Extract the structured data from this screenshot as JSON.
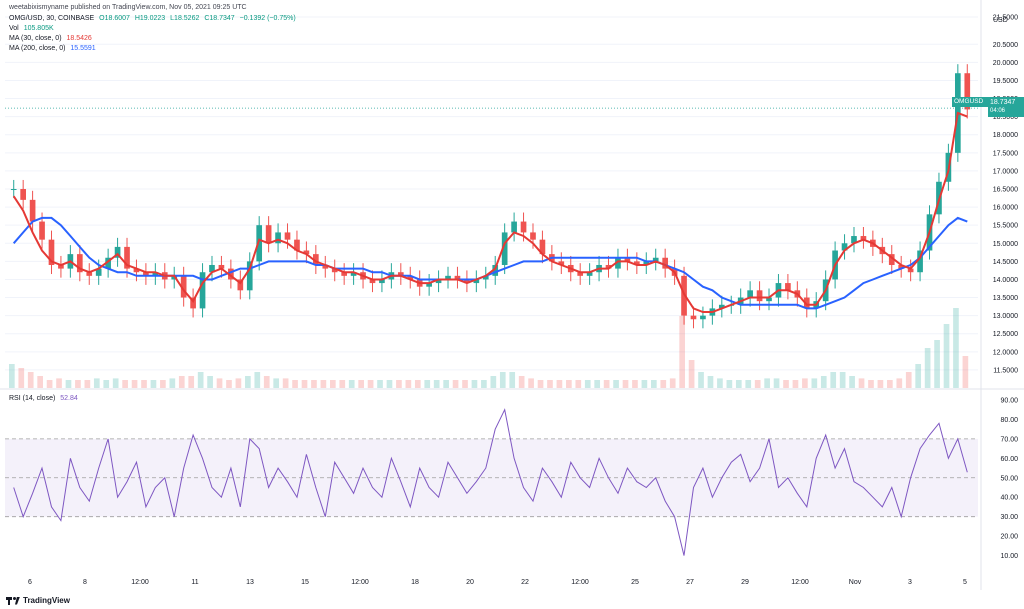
{
  "publisher": "weetabixismyname published on TradingView.com, Nov 05, 2021 09:25 UTC",
  "symbol_line": {
    "symbol": "OMG/USD, 30, COINBASE",
    "open": "O18.6007",
    "high": "H19.0223",
    "low": "L18.5262",
    "close": "C18.7347",
    "change": "−0.1392 (−0.75%)"
  },
  "volume": {
    "label": "Vol",
    "value": "105.805K"
  },
  "ma30": {
    "label": "MA (30, close, 0)",
    "value": "18.5426"
  },
  "ma200": {
    "label": "MA (200, close, 0)",
    "value": "15.5591"
  },
  "rsi": {
    "label": "RSI (14, close)",
    "value": "52.84"
  },
  "currency": "USD",
  "price_tag": {
    "symbol": "OMGUSD",
    "last": "18.7347",
    "countdown": "04:06"
  },
  "branding": "TradingView",
  "colors": {
    "up": "#26a69a",
    "down": "#ef5350",
    "ma30": "#e53935",
    "ma200": "#2962ff",
    "rsi": "#7e57c2",
    "rsi_band": "#ede7f6",
    "grid": "#f0f3fa"
  },
  "chart_data": [
    {
      "type": "candlestick",
      "title": "OMG/USD, 30, COINBASE",
      "ylim": [
        11.0,
        21.0
      ],
      "y_ticks": [
        "21.5000",
        "20.5000",
        "20.0000",
        "19.5000",
        "19.0000",
        "18.5000",
        "18.0000",
        "17.5000",
        "17.0000",
        "16.5000",
        "16.0000",
        "15.5000",
        "15.0000",
        "14.5000",
        "14.0000",
        "13.5000",
        "13.0000",
        "12.5000",
        "12.0000",
        "11.5000"
      ],
      "x_tick_labels": [
        "6",
        "8",
        "12:00",
        "11",
        "13",
        "15",
        "12:00",
        "18",
        "20",
        "22",
        "12:00",
        "25",
        "27",
        "29",
        "12:00",
        "Nov",
        "3",
        "5"
      ],
      "close_series": [
        16.5,
        16.2,
        15.6,
        15.1,
        14.4,
        14.3,
        14.7,
        14.2,
        14.1,
        14.3,
        14.6,
        14.9,
        14.3,
        14.2,
        14.1,
        14.2,
        14.0,
        14.1,
        13.5,
        13.2,
        14.2,
        14.4,
        14.3,
        14.0,
        13.7,
        14.5,
        15.5,
        15.0,
        15.3,
        15.1,
        14.8,
        14.7,
        14.4,
        14.3,
        14.2,
        14.1,
        14.2,
        14.0,
        13.9,
        14.0,
        14.2,
        14.1,
        14.0,
        13.8,
        13.9,
        14.0,
        14.1,
        14.0,
        13.9,
        14.0,
        14.1,
        14.4,
        15.3,
        15.6,
        15.3,
        15.1,
        14.7,
        14.5,
        14.4,
        14.2,
        14.1,
        14.2,
        14.4,
        14.3,
        14.6,
        14.5,
        14.4,
        14.5,
        14.6,
        14.3,
        14.1,
        13.0,
        12.9,
        13.0,
        13.2,
        13.3,
        13.3,
        13.5,
        13.7,
        13.4,
        13.5,
        13.9,
        13.7,
        13.5,
        13.2,
        13.4,
        14.0,
        14.8,
        15.0,
        15.2,
        15.1,
        14.9,
        14.7,
        14.4,
        14.3,
        14.2,
        14.8,
        15.8,
        16.7,
        17.5,
        19.7,
        18.7
      ],
      "ma30_approx": [
        16.3,
        15.9,
        15.3,
        14.8,
        14.5,
        14.4,
        14.5,
        14.3,
        14.2,
        14.3,
        14.5,
        14.7,
        14.4,
        14.3,
        14.2,
        14.2,
        14.1,
        14.1,
        13.7,
        13.4,
        13.9,
        14.2,
        14.3,
        14.1,
        13.9,
        14.3,
        15.1,
        15.0,
        15.1,
        15.0,
        14.8,
        14.7,
        14.5,
        14.4,
        14.3,
        14.2,
        14.2,
        14.1,
        14.0,
        14.0,
        14.1,
        14.1,
        14.0,
        13.9,
        13.9,
        14.0,
        14.0,
        14.0,
        13.9,
        14.0,
        14.1,
        14.3,
        15.0,
        15.3,
        15.2,
        15.0,
        14.7,
        14.5,
        14.4,
        14.3,
        14.2,
        14.2,
        14.3,
        14.3,
        14.5,
        14.5,
        14.4,
        14.4,
        14.5,
        14.4,
        14.2,
        13.6,
        13.2,
        13.1,
        13.1,
        13.2,
        13.3,
        13.4,
        13.5,
        13.5,
        13.5,
        13.7,
        13.7,
        13.6,
        13.3,
        13.3,
        13.7,
        14.4,
        14.8,
        15.0,
        15.1,
        15.0,
        14.8,
        14.6,
        14.4,
        14.3,
        14.6,
        15.3,
        16.2,
        17.0,
        18.6,
        18.5
      ],
      "ma200_approx": [
        15.0,
        15.3,
        15.6,
        15.7,
        15.7,
        15.5,
        15.2,
        14.9,
        14.6,
        14.4,
        14.3,
        14.2,
        14.2,
        14.1,
        14.1,
        14.1,
        14.1,
        14.1,
        14.1,
        14.1,
        14.0,
        14.0,
        14.1,
        14.2,
        14.3,
        14.3,
        14.4,
        14.5,
        14.5,
        14.5,
        14.5,
        14.5,
        14.4,
        14.4,
        14.3,
        14.3,
        14.3,
        14.3,
        14.2,
        14.2,
        14.1,
        14.1,
        14.1,
        14.0,
        14.0,
        14.0,
        14.0,
        14.0,
        14.0,
        14.0,
        14.1,
        14.2,
        14.3,
        14.4,
        14.5,
        14.5,
        14.5,
        14.6,
        14.6,
        14.6,
        14.6,
        14.6,
        14.6,
        14.6,
        14.6,
        14.6,
        14.6,
        14.5,
        14.5,
        14.4,
        14.3,
        14.2,
        14.0,
        13.8,
        13.7,
        13.5,
        13.4,
        13.3,
        13.3,
        13.3,
        13.3,
        13.3,
        13.3,
        13.3,
        13.2,
        13.2,
        13.3,
        13.4,
        13.5,
        13.7,
        13.9,
        14.0,
        14.1,
        14.2,
        14.3,
        14.4,
        14.6,
        14.9,
        15.2,
        15.5,
        15.7,
        15.6
      ]
    },
    {
      "type": "bar",
      "title": "Vol",
      "values": [
        0.3,
        0.25,
        0.2,
        0.15,
        0.1,
        0.12,
        0.1,
        0.1,
        0.1,
        0.12,
        0.1,
        0.12,
        0.1,
        0.1,
        0.1,
        0.1,
        0.1,
        0.12,
        0.15,
        0.15,
        0.2,
        0.15,
        0.12,
        0.1,
        0.12,
        0.15,
        0.2,
        0.15,
        0.12,
        0.12,
        0.1,
        0.1,
        0.1,
        0.1,
        0.1,
        0.1,
        0.1,
        0.1,
        0.1,
        0.1,
        0.1,
        0.1,
        0.1,
        0.1,
        0.1,
        0.1,
        0.1,
        0.1,
        0.1,
        0.1,
        0.1,
        0.15,
        0.2,
        0.2,
        0.15,
        0.12,
        0.1,
        0.1,
        0.1,
        0.1,
        0.1,
        0.1,
        0.1,
        0.1,
        0.1,
        0.1,
        0.1,
        0.1,
        0.1,
        0.1,
        0.12,
        0.9,
        0.35,
        0.2,
        0.15,
        0.12,
        0.1,
        0.1,
        0.1,
        0.1,
        0.12,
        0.12,
        0.1,
        0.1,
        0.12,
        0.12,
        0.15,
        0.2,
        0.2,
        0.15,
        0.12,
        0.1,
        0.1,
        0.1,
        0.12,
        0.2,
        0.3,
        0.5,
        0.6,
        0.8,
        1.0,
        0.4
      ]
    },
    {
      "type": "line",
      "title": "RSI (14, close)",
      "ylim": [
        0,
        90
      ],
      "y_ticks": [
        "90.00",
        "80.00",
        "70.00",
        "60.00",
        "50.00",
        "40.00",
        "30.00",
        "20.00",
        "10.00"
      ],
      "band": [
        30,
        70
      ],
      "values": [
        45,
        30,
        42,
        55,
        35,
        28,
        60,
        45,
        38,
        55,
        70,
        40,
        48,
        58,
        35,
        45,
        50,
        30,
        55,
        72,
        60,
        45,
        40,
        55,
        35,
        70,
        65,
        45,
        55,
        48,
        40,
        62,
        45,
        30,
        58,
        50,
        42,
        55,
        45,
        40,
        60,
        48,
        35,
        55,
        45,
        40,
        58,
        50,
        42,
        48,
        55,
        75,
        85,
        60,
        45,
        38,
        55,
        48,
        40,
        58,
        50,
        45,
        60,
        50,
        42,
        55,
        48,
        45,
        50,
        38,
        30,
        10,
        45,
        55,
        40,
        50,
        58,
        62,
        48,
        55,
        70,
        45,
        50,
        42,
        35,
        60,
        72,
        55,
        65,
        48,
        45,
        40,
        35,
        45,
        30,
        50,
        65,
        72,
        78,
        60,
        70,
        52.84
      ]
    }
  ]
}
